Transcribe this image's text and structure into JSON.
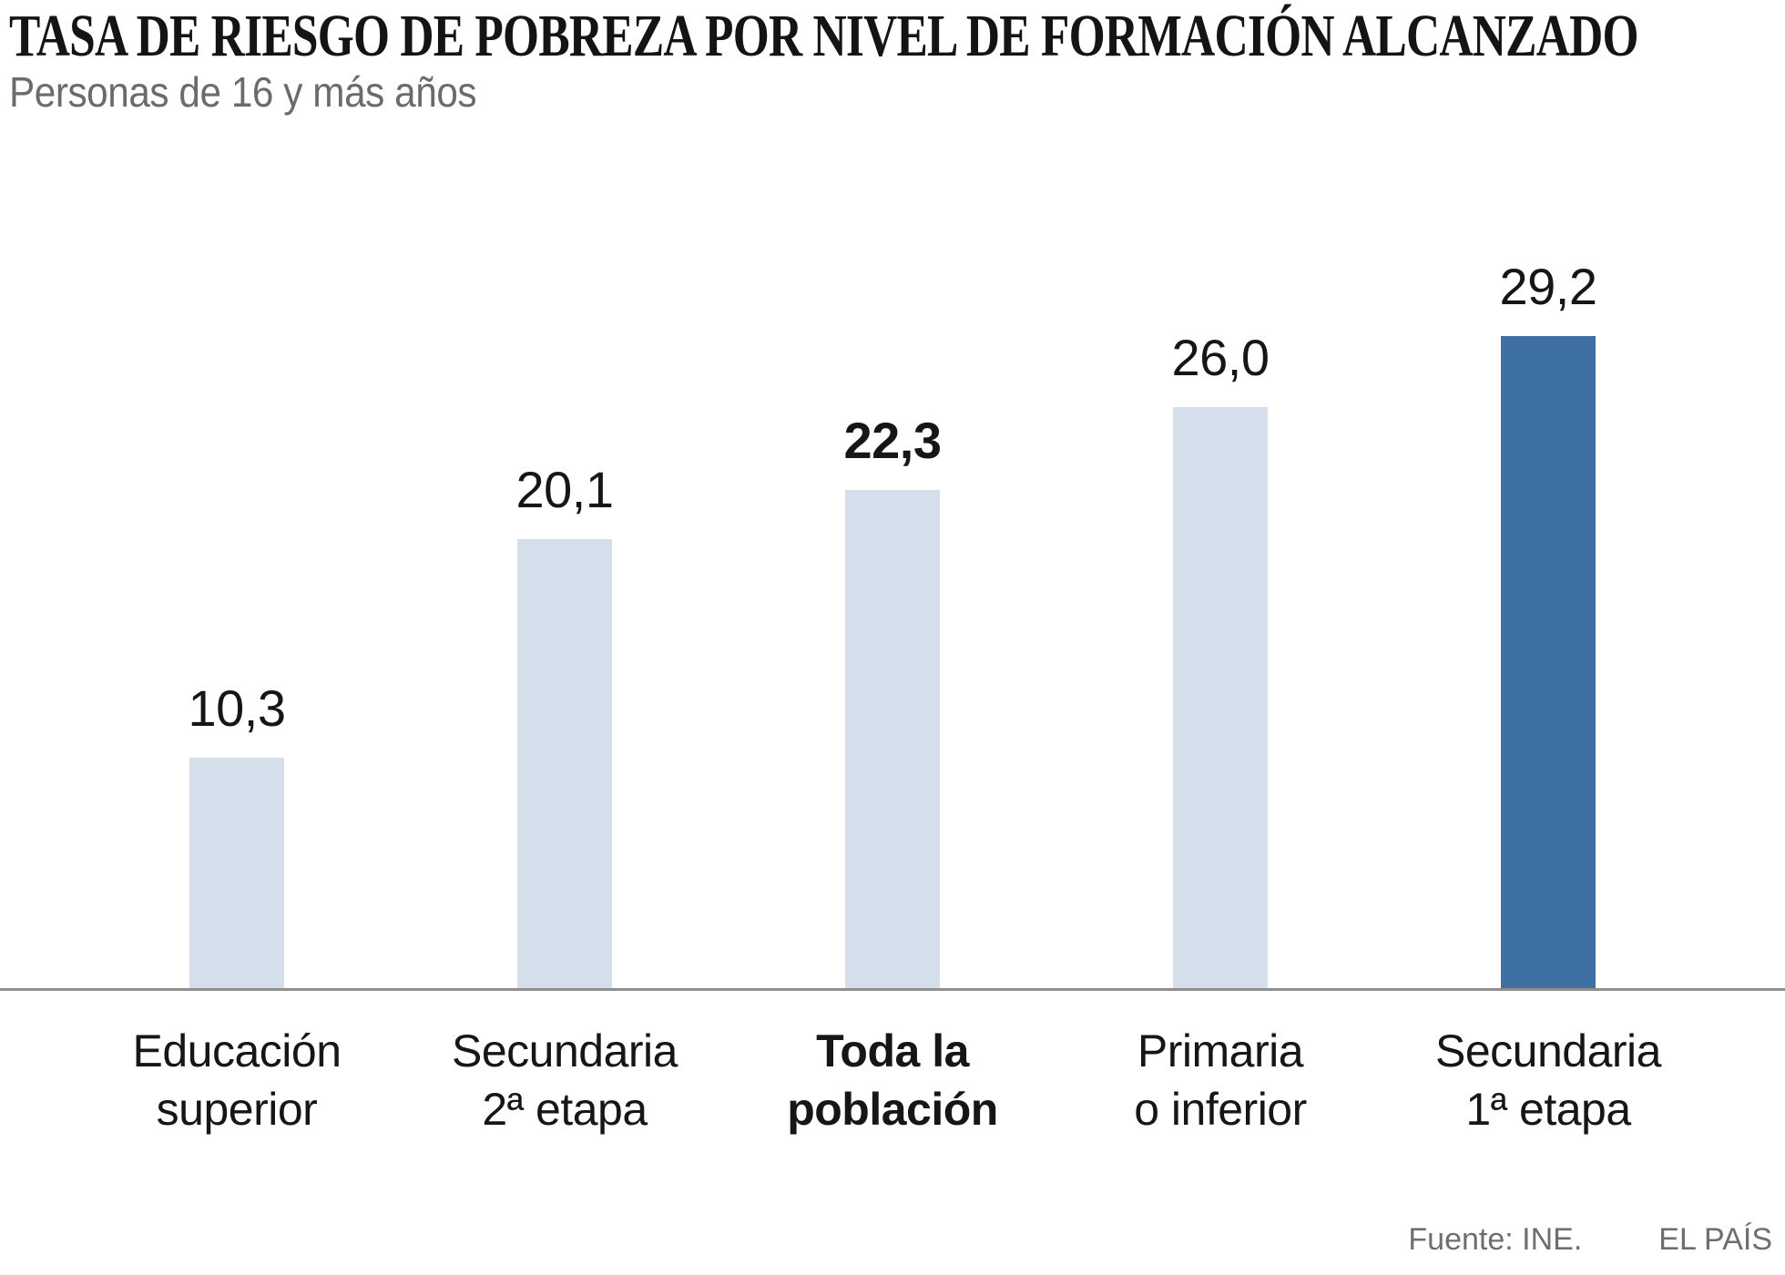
{
  "header": {
    "title": "TASA DE RIESGO DE POBREZA POR NIVEL DE FORMACIÓN ALCANZADO",
    "subtitle": "Personas de 16 y más años"
  },
  "chart_data": {
    "type": "bar",
    "title": "TASA DE RIESGO DE POBREZA POR NIVEL DE FORMACIÓN ALCANZADO",
    "subtitle": "Personas de 16 y más años",
    "categories": [
      "Educación superior",
      "Secundaria 2ª etapa",
      "Toda la población",
      "Primaria o inferior",
      "Secundaria 1ª etapa"
    ],
    "category_lines": [
      [
        "Educación",
        "superior"
      ],
      [
        "Secundaria",
        "2ª etapa"
      ],
      [
        "Toda la",
        "población"
      ],
      [
        "Primaria",
        "o inferior"
      ],
      [
        "Secundaria",
        "1ª etapa"
      ]
    ],
    "values": [
      10.3,
      20.1,
      22.3,
      26.0,
      29.2
    ],
    "value_labels": [
      "10,3",
      "20,1",
      "22,3",
      "26,0",
      "29,2"
    ],
    "emphasized_index": 2,
    "dark_index": 4,
    "bar_color_light": "#d4dfeb",
    "bar_color_dark": "#3f70a4",
    "xlabel": "",
    "ylabel": "",
    "ylim": [
      0,
      30
    ],
    "grid": false,
    "legend": false,
    "decimal_separator": ","
  },
  "footer": {
    "source": "Fuente: INE.",
    "brand": "EL PAÍS"
  }
}
